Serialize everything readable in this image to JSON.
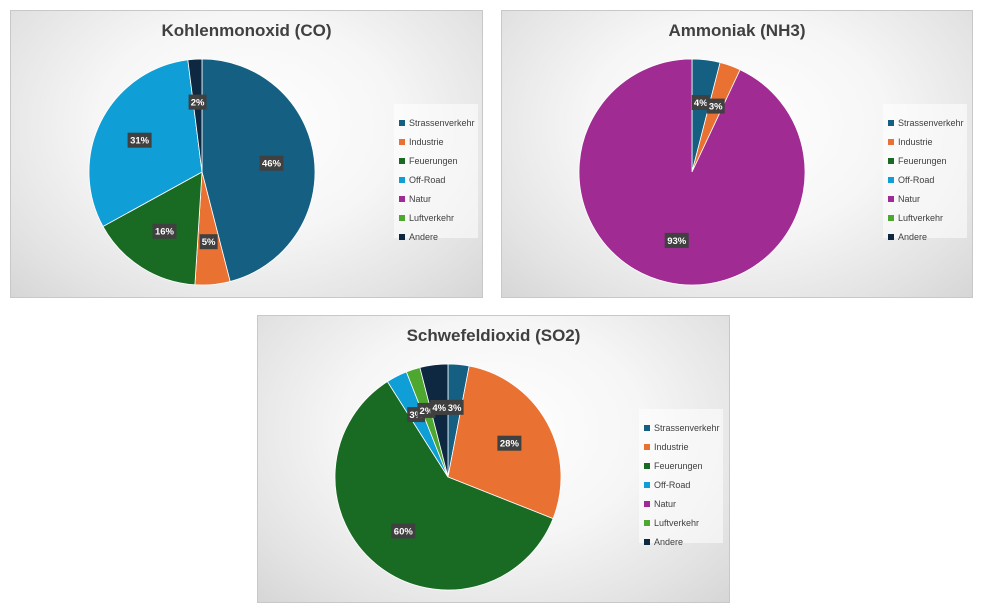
{
  "legend": [
    "Strassenverkehr",
    "Industrie",
    "Feuerungen",
    "Off-Road",
    "Natur",
    "Luftverkehr",
    "Andere"
  ],
  "colors": [
    "#156082",
    "#E97132",
    "#196B24",
    "#0F9ED5",
    "#A02B93",
    "#4EA72E",
    "#0E2841"
  ],
  "chart_data": [
    {
      "type": "pie",
      "title": "Kohlenmonoxid (CO)",
      "categories": [
        "Strassenverkehr",
        "Industrie",
        "Feuerungen",
        "Off-Road",
        "Natur",
        "Luftverkehr",
        "Andere"
      ],
      "values": [
        46,
        5,
        16,
        31,
        0,
        0,
        2
      ],
      "data_labels": [
        "46%",
        "5%",
        "16%",
        "31%",
        "",
        "",
        "2%"
      ],
      "legend_position": "right"
    },
    {
      "type": "pie",
      "title": "Ammoniak (NH3)",
      "categories": [
        "Strassenverkehr",
        "Industrie",
        "Feuerungen",
        "Off-Road",
        "Natur",
        "Luftverkehr",
        "Andere"
      ],
      "values": [
        4,
        3,
        0,
        0,
        93,
        0,
        0
      ],
      "data_labels": [
        "4%",
        "3%",
        "",
        "",
        "93%",
        "",
        ""
      ],
      "legend_position": "right"
    },
    {
      "type": "pie",
      "title": "Schwefeldioxid (SO2)",
      "categories": [
        "Strassenverkehr",
        "Industrie",
        "Feuerungen",
        "Off-Road",
        "Natur",
        "Luftverkehr",
        "Andere"
      ],
      "values": [
        3,
        28,
        60,
        3,
        0,
        2,
        4
      ],
      "data_labels": [
        "3%",
        "28%",
        "60%",
        "3%",
        "",
        "2%",
        "4%"
      ],
      "legend_position": "right"
    }
  ]
}
